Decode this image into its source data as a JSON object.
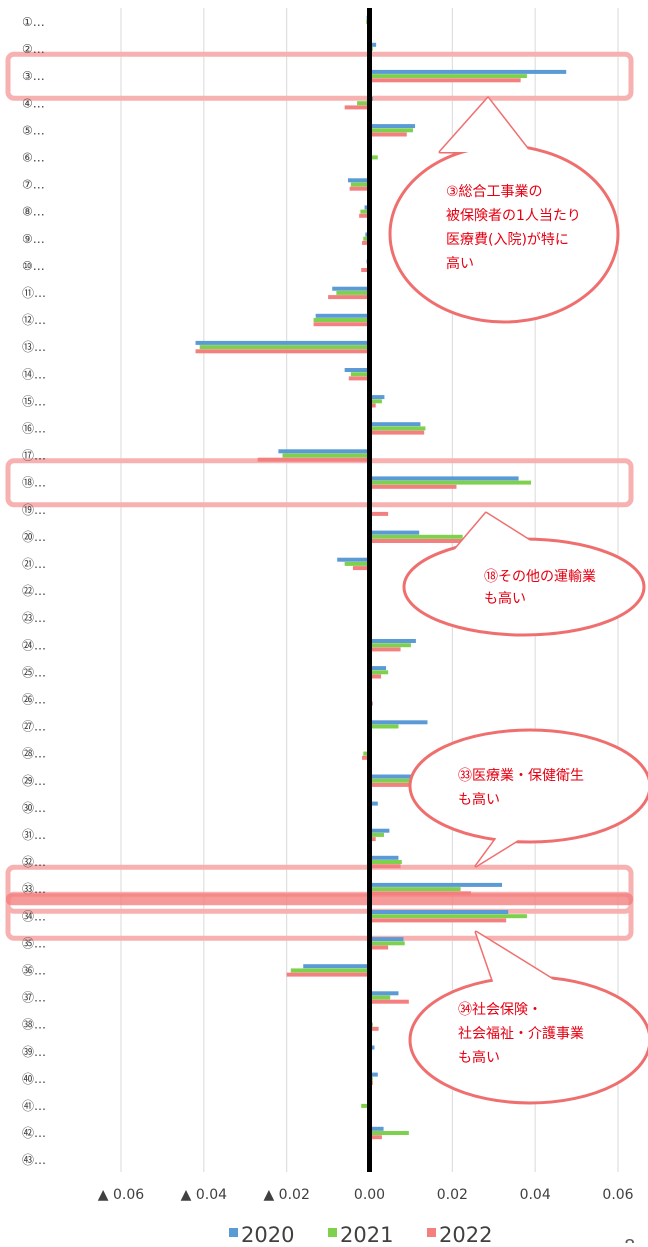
{
  "chart_data": {
    "type": "bar",
    "orientation": "horizontal",
    "categories": [
      "①…",
      "②…",
      "③…",
      "④…",
      "⑤…",
      "⑥…",
      "⑦…",
      "⑧…",
      "⑨…",
      "⑩…",
      "⑪…",
      "⑫…",
      "⑬…",
      "⑭…",
      "⑮…",
      "⑯…",
      "⑰…",
      "⑱…",
      "⑲…",
      "⑳…",
      "㉑…",
      "㉒…",
      "㉓…",
      "㉔…",
      "㉕…",
      "㉖…",
      "㉗…",
      "㉘…",
      "㉙…",
      "㉚…",
      "㉛…",
      "㉜…",
      "㉝…",
      "㉞…",
      "㉟…",
      "㊱…",
      "㊲…",
      "㊳…",
      "㊴…",
      "㊵…",
      "㊶…",
      "㊷…",
      "㊸…"
    ],
    "series": [
      {
        "name": "2020",
        "color": "#5b9bd5",
        "values": [
          -0.0007,
          0.0016,
          0.0475,
          0.0008,
          0.011,
          0.0006,
          -0.0052,
          -0.0012,
          -0.001,
          -0.0007,
          -0.009,
          -0.013,
          -0.042,
          -0.006,
          0.0036,
          0.0123,
          -0.022,
          0.036,
          0,
          0.012,
          -0.0078,
          0,
          0,
          0.0112,
          0.004,
          0.0005,
          0.014,
          -0.0003,
          0.0168,
          0.002,
          0.0048,
          0.007,
          0.032,
          0.0335,
          0.0082,
          -0.016,
          0.007,
          0.0005,
          0.0012,
          0.002,
          0,
          0.0034,
          0
        ]
      },
      {
        "name": "2021",
        "color": "#7ed14c",
        "values": [
          -0.0008,
          0.0008,
          0.038,
          -0.003,
          0.0105,
          0.002,
          -0.0045,
          -0.0022,
          -0.0015,
          -0.0004,
          -0.008,
          -0.0135,
          -0.041,
          -0.0045,
          0.003,
          0.0135,
          -0.021,
          0.039,
          0,
          0.0225,
          -0.006,
          0,
          0,
          0.01,
          0.0045,
          0.0004,
          0.007,
          -0.0015,
          0.0125,
          0.0005,
          0.0035,
          0.0078,
          0.022,
          0.038,
          0.0085,
          -0.019,
          0.005,
          0.0008,
          0,
          0.0008,
          -0.002,
          0.0095,
          0
        ]
      },
      {
        "name": "2022",
        "color": "#f47f7f",
        "values": [
          -0.0004,
          0.0002,
          0.0365,
          -0.006,
          0.009,
          0.0002,
          -0.0048,
          -0.0025,
          -0.0018,
          -0.002,
          -0.01,
          -0.0135,
          -0.042,
          -0.005,
          0.0015,
          0.0132,
          -0.027,
          0.021,
          0.0045,
          0.0225,
          -0.004,
          0,
          0,
          0.0075,
          0.0028,
          0.0008,
          0,
          -0.0018,
          0.0152,
          -0.0005,
          0.0015,
          0.0075,
          0.0245,
          0.033,
          0.0045,
          -0.02,
          0.0095,
          0.0022,
          0,
          0.0008,
          0,
          0.003,
          0
        ]
      }
    ],
    "xlim": [
      -0.06,
      0.06
    ],
    "x_ticks": [
      -0.06,
      -0.04,
      -0.02,
      0,
      0.02,
      0.04,
      0.06
    ],
    "x_tick_labels": [
      "▲ 0.06",
      "▲ 0.04",
      "▲ 0.02",
      "0.00",
      "0.02",
      "0.04",
      "0.06"
    ],
    "grid": true,
    "legend_position": "bottom",
    "highlighted_categories": [
      "③…",
      "⑱…",
      "㉝…",
      "㉞…"
    ],
    "annotations": [
      {
        "target": "③…",
        "lines": [
          "③総合工事業の",
          "被保険者の1人当たり",
          "医療費(入院)が特に",
          "高い"
        ]
      },
      {
        "target": "⑱…",
        "lines": [
          "⑱その他の運輸業",
          "も高い"
        ]
      },
      {
        "target": "㉝…",
        "lines": [
          "㉝医療業・保健衛生",
          "も高い"
        ]
      },
      {
        "target": "㉞…",
        "lines": [
          "㉞社会保険・",
          "社会福祉・介護事業",
          "も高い"
        ]
      }
    ],
    "page_number": "8"
  }
}
